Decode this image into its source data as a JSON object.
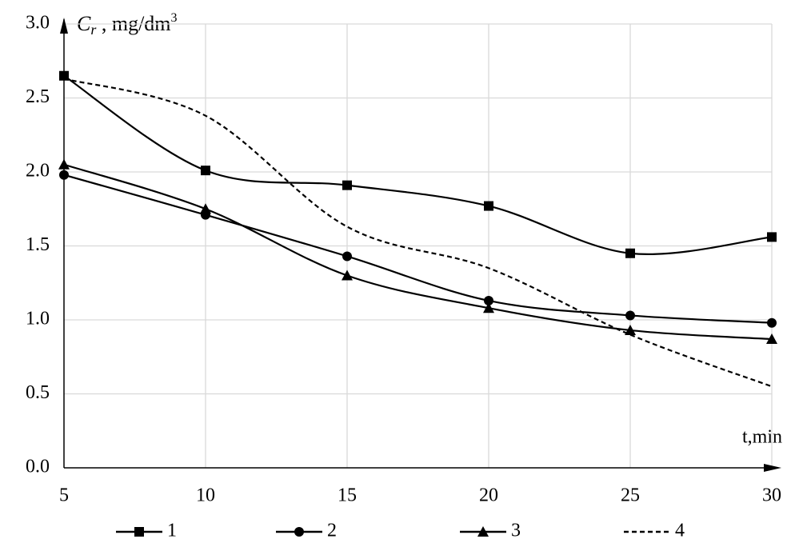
{
  "chart_data": {
    "type": "line",
    "y_label": {
      "symbol": "C",
      "subscript": "r",
      "unit": " , mg/dm",
      "superscript": "3"
    },
    "x_label": "t,min",
    "x": [
      5,
      10,
      15,
      20,
      25,
      30
    ],
    "xlim": [
      5,
      30
    ],
    "xticks": [
      5,
      10,
      15,
      20,
      25,
      30
    ],
    "ylim": [
      0,
      3
    ],
    "yticks": [
      {
        "value": 0,
        "label": "0.0"
      },
      {
        "value": 0.5,
        "label": "0.5"
      },
      {
        "value": 1,
        "label": "1.0"
      },
      {
        "value": 1.5,
        "label": "1.5"
      },
      {
        "value": 2,
        "label": "2.0"
      },
      {
        "value": 2.5,
        "label": "2.5"
      },
      {
        "value": 3,
        "label": "3.0"
      }
    ],
    "grid": true,
    "legend": "bottom",
    "series": [
      {
        "name": "1",
        "color": "#000000",
        "marker": "square",
        "dashed": false,
        "values": [
          2.65,
          2.01,
          1.91,
          1.77,
          1.45,
          1.56
        ]
      },
      {
        "name": "2",
        "color": "#000000",
        "marker": "circle",
        "dashed": false,
        "values": [
          1.98,
          1.71,
          1.43,
          1.13,
          1.03,
          0.98
        ]
      },
      {
        "name": "3",
        "color": "#000000",
        "marker": "triangle",
        "dashed": false,
        "values": [
          2.05,
          1.75,
          1.3,
          1.08,
          0.93,
          0.87
        ]
      },
      {
        "name": "4",
        "color": "#000000",
        "marker": "none",
        "dashed": true,
        "values": [
          2.63,
          2.38,
          1.63,
          1.35,
          0.9,
          0.55
        ]
      }
    ]
  }
}
